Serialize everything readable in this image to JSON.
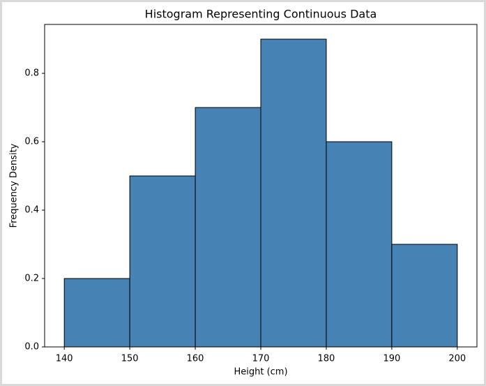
{
  "chart_data": {
    "type": "histogram",
    "title": "Histogram Representing Continuous Data",
    "x_label": "Height (cm)",
    "y_label": "Frequency Density",
    "bins": [
      140,
      150,
      160,
      170,
      180,
      190,
      200
    ],
    "values": [
      0.2,
      0.5,
      0.7,
      0.9,
      0.6,
      0.3
    ],
    "color": "#4682b4",
    "edgecolor": "#000000",
    "xlim": [
      137,
      203
    ],
    "xticks": [
      140,
      150,
      160,
      170,
      180,
      190,
      200
    ],
    "ylim": [
      0,
      0.943
    ],
    "yticks": [
      {
        "value": 0,
        "label": "0.0"
      },
      0.2,
      0.4,
      0.6,
      0.8
    ]
  }
}
